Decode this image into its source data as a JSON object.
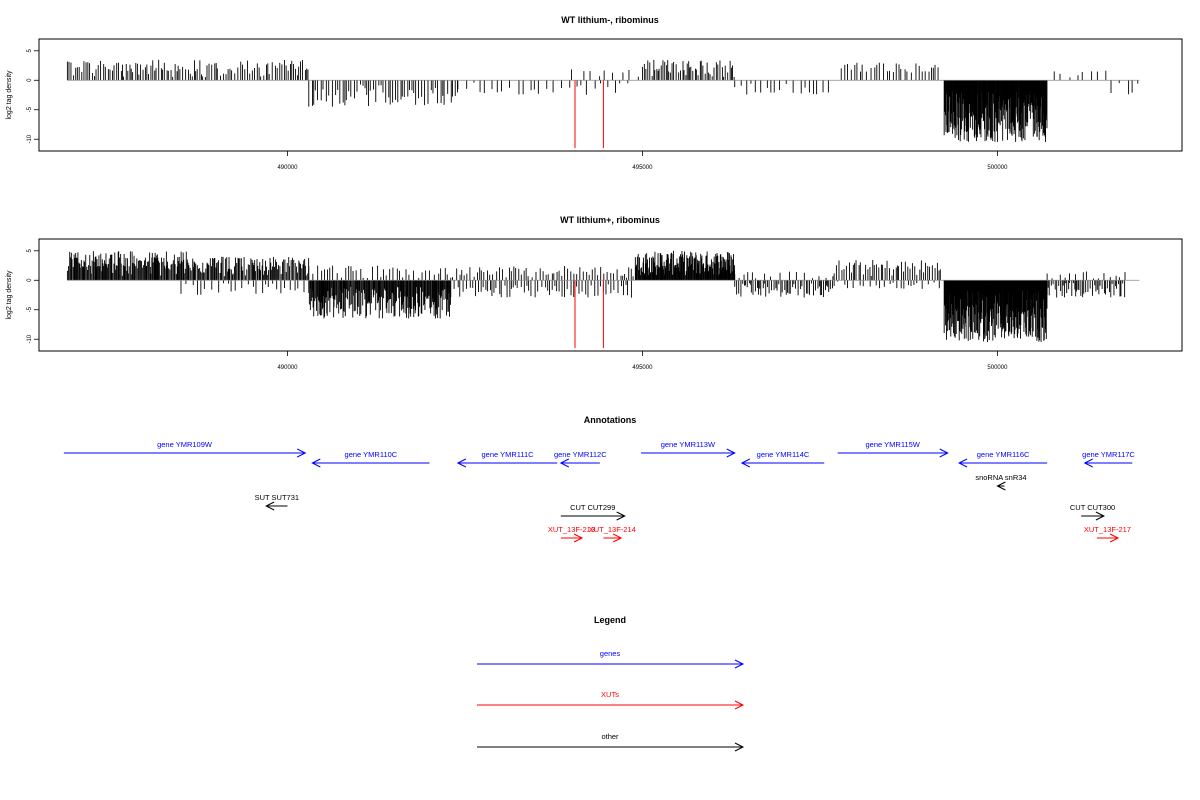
{
  "chart_data": [
    {
      "type": "bar",
      "title": "WT lithium-, ribominus",
      "ylabel": "log2 tag density",
      "xlabel": "",
      "xlim": [
        486500,
        502600
      ],
      "ylim": [
        -12,
        7
      ],
      "x_ticks": [
        "490000",
        "495000",
        "500000"
      ],
      "y_ticks": [
        "5",
        "0",
        "-5",
        "-10"
      ],
      "grid": false,
      "baseline": 0,
      "marker_positions": [
        494050,
        494450
      ],
      "marker_color": "#ff0000",
      "regions": [
        {
          "from": 486900,
          "to": 490300,
          "sign": 1,
          "max": 3.5,
          "spacing": 30
        },
        {
          "from": 490300,
          "to": 492400,
          "sign": -1,
          "max": 4.5,
          "spacing": 35
        },
        {
          "from": 492400,
          "to": 494800,
          "sign": -1,
          "max": 2.5,
          "spacing": 90
        },
        {
          "from": 494000,
          "to": 495000,
          "sign": 1,
          "max": 2,
          "spacing": 120
        },
        {
          "from": 495000,
          "to": 496300,
          "sign": 1,
          "max": 3.5,
          "spacing": 25
        },
        {
          "from": 496300,
          "to": 497700,
          "sign": -1,
          "max": 2.5,
          "spacing": 80
        },
        {
          "from": 497800,
          "to": 499200,
          "sign": 1,
          "max": 3,
          "spacing": 45
        },
        {
          "from": 499250,
          "to": 500700,
          "sign": -1,
          "max": 10.5,
          "spacing": 6
        },
        {
          "from": 500800,
          "to": 501600,
          "sign": 1,
          "max": 2,
          "spacing": 100
        },
        {
          "from": 501600,
          "to": 502000,
          "sign": -1,
          "max": 2.5,
          "spacing": 90
        }
      ]
    },
    {
      "type": "bar",
      "title": "WT lithium+, ribominus",
      "ylabel": "log2 tag density",
      "xlabel": "",
      "xlim": [
        486500,
        502600
      ],
      "ylim": [
        -12,
        7
      ],
      "x_ticks": [
        "490000",
        "495000",
        "500000"
      ],
      "y_ticks": [
        "5",
        "0",
        "-5",
        "-10"
      ],
      "grid": false,
      "baseline": 0,
      "marker_positions": [
        494050,
        494450
      ],
      "marker_color": "#ff0000",
      "regions": [
        {
          "from": 486900,
          "to": 488600,
          "sign": 1,
          "max": 5,
          "spacing": 12
        },
        {
          "from": 488600,
          "to": 490300,
          "sign": 1,
          "max": 4,
          "spacing": 15
        },
        {
          "from": 488500,
          "to": 490300,
          "sign": -1,
          "max": 2.5,
          "spacing": 70
        },
        {
          "from": 490300,
          "to": 492300,
          "sign": -1,
          "max": 6.5,
          "spacing": 10
        },
        {
          "from": 490300,
          "to": 492300,
          "sign": 1,
          "max": 2.5,
          "spacing": 50
        },
        {
          "from": 492300,
          "to": 494900,
          "sign": 1,
          "max": 2.5,
          "spacing": 40
        },
        {
          "from": 492300,
          "to": 494900,
          "sign": -1,
          "max": 3,
          "spacing": 40
        },
        {
          "from": 494900,
          "to": 496300,
          "sign": 1,
          "max": 5,
          "spacing": 8
        },
        {
          "from": 496300,
          "to": 497700,
          "sign": -1,
          "max": 3,
          "spacing": 25
        },
        {
          "from": 496300,
          "to": 497700,
          "sign": 1,
          "max": 1.5,
          "spacing": 90
        },
        {
          "from": 497700,
          "to": 499200,
          "sign": 1,
          "max": 3.5,
          "spacing": 30
        },
        {
          "from": 497700,
          "to": 499200,
          "sign": -1,
          "max": 1.5,
          "spacing": 70
        },
        {
          "from": 499250,
          "to": 500700,
          "sign": -1,
          "max": 10.5,
          "spacing": 5
        },
        {
          "from": 500700,
          "to": 501800,
          "sign": -1,
          "max": 3,
          "spacing": 22
        },
        {
          "from": 500700,
          "to": 501800,
          "sign": 1,
          "max": 1.5,
          "spacing": 80
        }
      ]
    }
  ],
  "annotations": {
    "title": "Annotations",
    "genes_color": "#0000ff",
    "xut_color": "#ff0000",
    "other_color": "#000000",
    "genes": [
      {
        "label": "gene YMR109W",
        "start": 486850,
        "end": 490250,
        "strand": "+",
        "row": 0
      },
      {
        "label": "gene YMR110C",
        "start": 490350,
        "end": 492000,
        "strand": "-",
        "row": 1
      },
      {
        "label": "gene YMR111C",
        "start": 492400,
        "end": 493800,
        "strand": "-",
        "row": 1
      },
      {
        "label": "gene YMR112C",
        "start": 493850,
        "end": 494400,
        "strand": "-",
        "row": 1
      },
      {
        "label": "gene YMR113W",
        "start": 494980,
        "end": 496300,
        "strand": "+",
        "row": 0
      },
      {
        "label": "gene YMR114C",
        "start": 496400,
        "end": 497560,
        "strand": "-",
        "row": 1
      },
      {
        "label": "gene YMR115W",
        "start": 497750,
        "end": 499300,
        "strand": "+",
        "row": 0
      },
      {
        "label": "gene YMR116C",
        "start": 499460,
        "end": 500700,
        "strand": "-",
        "row": 1
      },
      {
        "label": "gene YMR117C",
        "start": 501230,
        "end": 501900,
        "strand": "-",
        "row": 1
      }
    ],
    "others": [
      {
        "label": "snoRNA snR34",
        "start": 500000,
        "end": 500100,
        "strand": "-",
        "row": 2
      },
      {
        "label": "SUT SUT731",
        "start": 489700,
        "end": 490000,
        "strand": "-",
        "row": 3
      },
      {
        "label": "CUT CUT299",
        "start": 493850,
        "end": 494750,
        "strand": "+",
        "row": 4
      },
      {
        "label": "CUT CUT300",
        "start": 501180,
        "end": 501500,
        "strand": "+",
        "row": 4
      }
    ],
    "xuts": [
      {
        "label": "XUT_13F-213",
        "start": 493850,
        "end": 494150,
        "strand": "+",
        "row": 5
      },
      {
        "label": "XUT_13F-214",
        "start": 494450,
        "end": 494700,
        "strand": "+",
        "row": 5
      },
      {
        "label": "XUT_13F-217",
        "start": 501400,
        "end": 501700,
        "strand": "+",
        "row": 5
      }
    ]
  },
  "legend": {
    "title": "Legend",
    "items": [
      {
        "label": "genes",
        "color": "#0000ff"
      },
      {
        "label": "XUTs",
        "color": "#ff0000"
      },
      {
        "label": "other",
        "color": "#000000"
      }
    ]
  }
}
